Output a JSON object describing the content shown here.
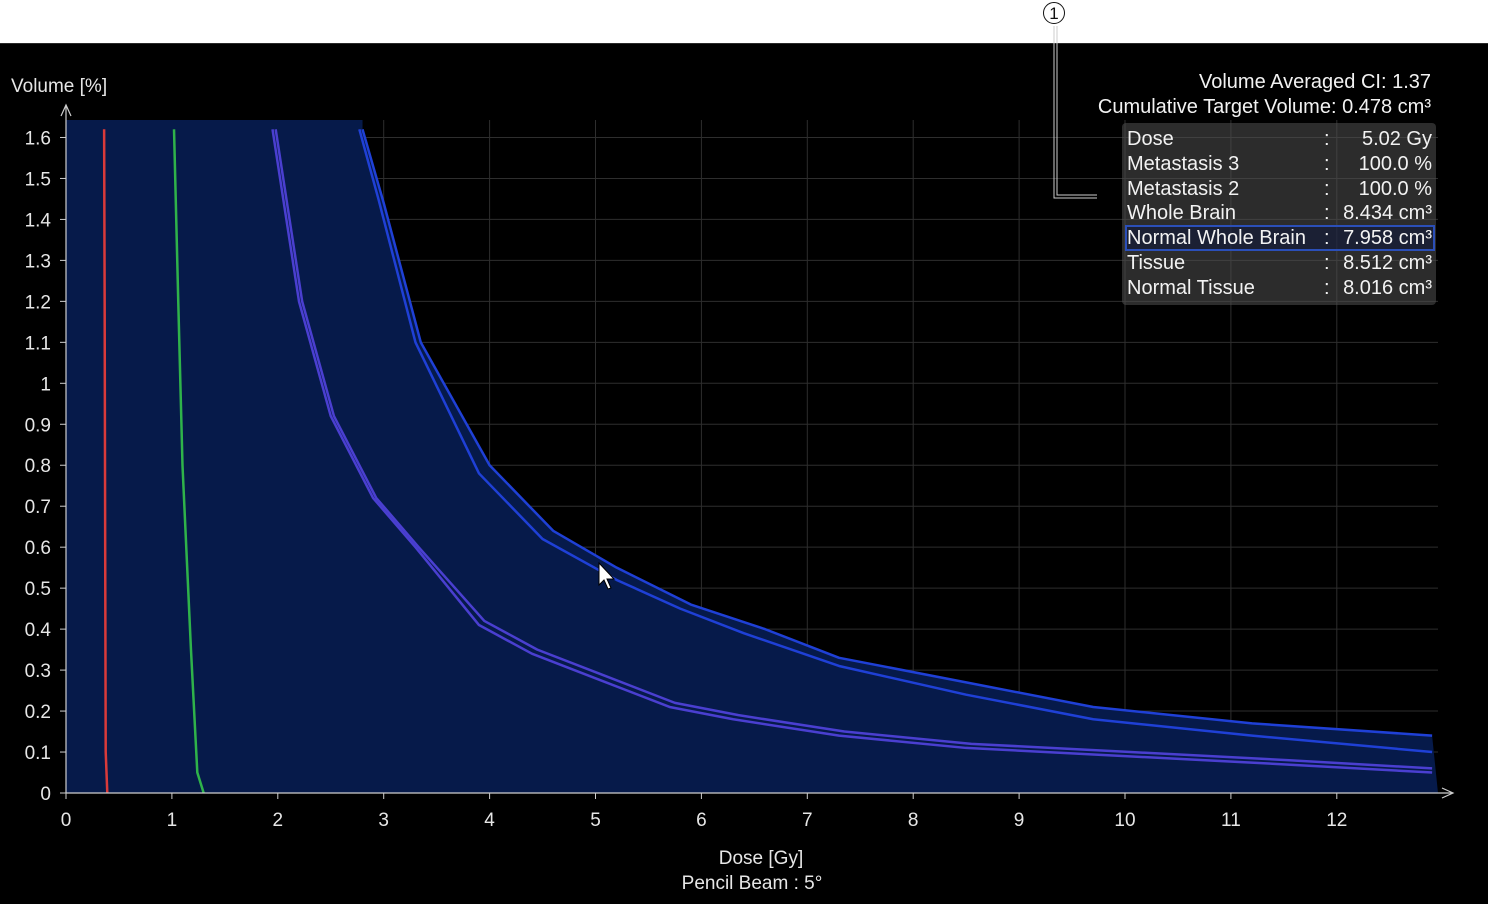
{
  "callout": {
    "number": "1"
  },
  "summary": {
    "ci_text": "Volume Averaged CI: 1.37",
    "target_volume_text": "Cumulative Target Volume: 0.478 cm³"
  },
  "info_box": {
    "rows": [
      {
        "label": "Dose",
        "colon": ":",
        "value": "5.02 Gy",
        "selected": false
      },
      {
        "label": "Metastasis 3",
        "colon": ":",
        "value": "100.0 %",
        "selected": false
      },
      {
        "label": "Metastasis 2",
        "colon": ":",
        "value": "100.0 %",
        "selected": false
      },
      {
        "label": "Whole Brain",
        "colon": ":",
        "value": "8.434 cm³",
        "selected": false
      },
      {
        "label": "Normal Whole Brain",
        "colon": ":",
        "value": "7.958 cm³",
        "selected": true
      },
      {
        "label": "Tissue",
        "colon": ":",
        "value": "8.512 cm³",
        "selected": false
      },
      {
        "label": "Normal Tissue",
        "colon": ":",
        "value": "8.016 cm³",
        "selected": false
      }
    ]
  },
  "colors": {
    "background": "#000000",
    "fill": "#061a4a",
    "grid": "#2e2e2e",
    "metastasis_3": "#d93a3a",
    "metastasis_2": "#2fb34a",
    "whole_brain": "#1f40d6",
    "tissue": "#4a3fd0"
  },
  "chart_data": {
    "type": "line",
    "xlabel": "Dose [Gy]",
    "subtitle": "Pencil Beam : 5°",
    "ylabel": "Volume [%]",
    "xlim": [
      0,
      12.9
    ],
    "ylim": [
      0,
      1.62
    ],
    "x_ticks": [
      0,
      1,
      2,
      3,
      4,
      5,
      6,
      7,
      8,
      9,
      10,
      11,
      12
    ],
    "y_ticks": [
      "0",
      "0.1",
      "0.2",
      "0.3",
      "0.4",
      "0.5",
      "0.6",
      "0.7",
      "0.8",
      "0.9",
      "1",
      "1.1",
      "1.2",
      "1.3",
      "1.4",
      "1.5",
      "1.6"
    ],
    "grid": true,
    "series": [
      {
        "key": "metastasis_3",
        "points": [
          [
            0.36,
            1.62
          ],
          [
            0.365,
            1.2
          ],
          [
            0.37,
            0.6
          ],
          [
            0.375,
            0.1
          ],
          [
            0.39,
            0
          ]
        ]
      },
      {
        "key": "metastasis_2",
        "points": [
          [
            1.02,
            1.62
          ],
          [
            1.06,
            1.2
          ],
          [
            1.1,
            0.8
          ],
          [
            1.18,
            0.35
          ],
          [
            1.24,
            0.05
          ],
          [
            1.3,
            0
          ]
        ]
      },
      {
        "key": "whole_brain_a",
        "points": [
          [
            2.77,
            1.62
          ],
          [
            2.95,
            1.45
          ],
          [
            3.3,
            1.1
          ],
          [
            3.9,
            0.78
          ],
          [
            4.5,
            0.62
          ],
          [
            5.2,
            0.52
          ],
          [
            5.8,
            0.45
          ],
          [
            6.4,
            0.39
          ],
          [
            7.3,
            0.31
          ],
          [
            8.5,
            0.24
          ],
          [
            9.7,
            0.18
          ],
          [
            11.2,
            0.14
          ],
          [
            12.9,
            0.1
          ]
        ]
      },
      {
        "key": "whole_brain_b",
        "points": [
          [
            2.8,
            1.62
          ],
          [
            3.0,
            1.44
          ],
          [
            3.35,
            1.1
          ],
          [
            4.0,
            0.8
          ],
          [
            4.6,
            0.64
          ],
          [
            5.2,
            0.55
          ],
          [
            5.9,
            0.46
          ],
          [
            6.6,
            0.4
          ],
          [
            7.3,
            0.33
          ],
          [
            8.5,
            0.27
          ],
          [
            9.7,
            0.21
          ],
          [
            11.2,
            0.17
          ],
          [
            12.9,
            0.14
          ]
        ]
      },
      {
        "key": "tissue_a",
        "points": [
          [
            1.95,
            1.62
          ],
          [
            2.2,
            1.2
          ],
          [
            2.5,
            0.92
          ],
          [
            2.9,
            0.72
          ],
          [
            3.3,
            0.6
          ],
          [
            3.9,
            0.41
          ],
          [
            4.4,
            0.34
          ],
          [
            5.0,
            0.28
          ],
          [
            5.7,
            0.21
          ],
          [
            6.3,
            0.18
          ],
          [
            7.3,
            0.14
          ],
          [
            8.5,
            0.11
          ],
          [
            10.0,
            0.09
          ],
          [
            11.5,
            0.07
          ],
          [
            12.9,
            0.05
          ]
        ]
      },
      {
        "key": "tissue_b",
        "points": [
          [
            1.98,
            1.62
          ],
          [
            2.23,
            1.2
          ],
          [
            2.53,
            0.92
          ],
          [
            2.93,
            0.72
          ],
          [
            3.33,
            0.6
          ],
          [
            3.95,
            0.42
          ],
          [
            4.45,
            0.35
          ],
          [
            5.05,
            0.29
          ],
          [
            5.75,
            0.22
          ],
          [
            6.35,
            0.19
          ],
          [
            7.35,
            0.15
          ],
          [
            8.55,
            0.12
          ],
          [
            10.05,
            0.1
          ],
          [
            11.55,
            0.08
          ],
          [
            12.9,
            0.06
          ]
        ]
      }
    ]
  }
}
